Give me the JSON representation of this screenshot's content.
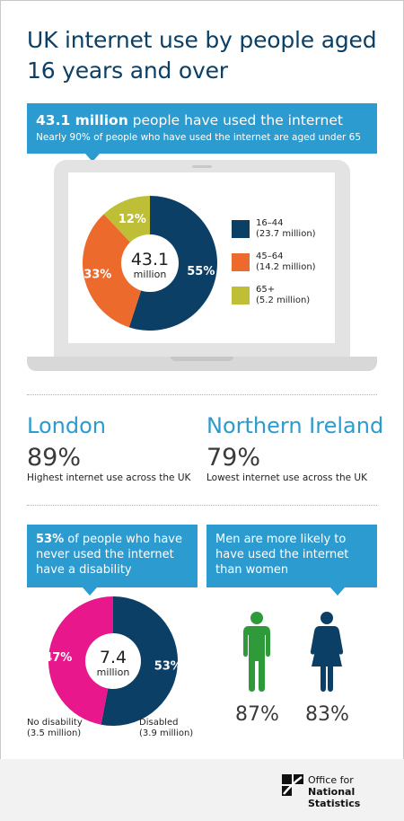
{
  "title": "UK internet use by people aged 16 years and over",
  "banner": {
    "headline_bold": "43.1 million",
    "headline_rest": " people have used the internet",
    "subtitle": "Nearly 90% of people who have used the internet are aged under 65"
  },
  "chart_data": [
    {
      "type": "pie",
      "variant": "donut",
      "center_value": "43.1",
      "center_unit": "million",
      "slices": [
        {
          "name": "16–44",
          "detail": "(23.7 million)",
          "value": 55,
          "label": "55%",
          "color": "#0b3f66"
        },
        {
          "name": "45–64",
          "detail": "(14.2 million)",
          "value": 33,
          "label": "33%",
          "color": "#ec6a2c"
        },
        {
          "name": "65+",
          "detail": "(5.2 million)",
          "value": 12,
          "label": "12%",
          "color": "#bfbf37"
        }
      ],
      "legend_position": "right"
    },
    {
      "type": "pie",
      "variant": "donut",
      "center_value": "7.4",
      "center_unit": "million",
      "slices": [
        {
          "name": "Disabled",
          "detail": "(3.9 million)",
          "value": 53,
          "label": "53%",
          "color": "#0b3f66"
        },
        {
          "name": "No disability",
          "detail": "(3.5 million)",
          "value": 47,
          "label": "47%",
          "color": "#e8178c"
        }
      ]
    }
  ],
  "regions": {
    "london": {
      "name": "London",
      "value": "89%",
      "caption": "Highest internet use across the UK"
    },
    "ni": {
      "name": "Northern Ireland",
      "value": "79%",
      "caption": "Lowest internet use across the UK"
    }
  },
  "disability_callout": {
    "bold": "53%",
    "rest": " of people who have never used the internet have a disability"
  },
  "gender_callout": {
    "text": "Men are more likely to have used the internet than women"
  },
  "gender": {
    "men": {
      "value": "87%",
      "color": "#2e9a3a",
      "icon": "man-icon"
    },
    "women": {
      "value": "83%",
      "color": "#0b3f66",
      "icon": "woman-icon"
    }
  },
  "footer": {
    "org_line1": "Office for",
    "org_line2": "National Statistics"
  },
  "colors": {
    "accent": "#2b9bd0",
    "navy": "#0b3f66"
  }
}
